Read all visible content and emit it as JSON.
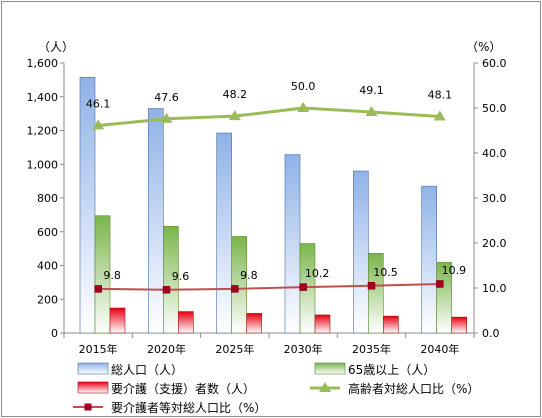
{
  "chart_data": {
    "type": "bar",
    "categories": [
      "2015年",
      "2020年",
      "2025年",
      "2030年",
      "2035年",
      "2040年"
    ],
    "y_left_unit": "（人）",
    "y_right_unit": "（%）",
    "ylim_left": [
      0,
      1600
    ],
    "ylim_right": [
      0,
      60
    ],
    "y_left_ticks": [
      "0",
      "200",
      "400",
      "600",
      "800",
      "1,000",
      "1,200",
      "1,400",
      "1,600"
    ],
    "y_right_ticks": [
      "0.0",
      "10.0",
      "20.0",
      "30.0",
      "40.0",
      "50.0",
      "60.0"
    ],
    "series": [
      {
        "name": "総人口（人）",
        "kind": "bar",
        "axis": "left",
        "values": [
          1515,
          1330,
          1185,
          1057,
          960,
          870
        ],
        "color": "#a6c4ec"
      },
      {
        "name": "65歳以上（人）",
        "kind": "bar",
        "axis": "left",
        "values": [
          695,
          632,
          572,
          530,
          472,
          418
        ],
        "color": "#8dc060"
      },
      {
        "name": "要介護（支援）者数（人）",
        "kind": "bar",
        "axis": "left",
        "values": [
          148,
          127,
          116,
          107,
          100,
          94
        ],
        "color": "#e8141b"
      },
      {
        "name": "高齢者対総人口比（%）",
        "kind": "line",
        "axis": "right",
        "values": [
          46.1,
          47.6,
          48.2,
          50.0,
          49.1,
          48.1
        ],
        "labels": [
          "46.1",
          "47.6",
          "48.2",
          "50.0",
          "49.1",
          "48.1"
        ],
        "color": "#9bbb59"
      },
      {
        "name": "要介護者等対総人口比（%）",
        "kind": "line",
        "axis": "right",
        "values": [
          9.8,
          9.6,
          9.8,
          10.2,
          10.5,
          10.9
        ],
        "labels": [
          "9.8",
          "9.6",
          "9.8",
          "10.2",
          "10.5",
          "10.9"
        ],
        "color": "#c0504d"
      }
    ],
    "legend": [
      "総人口（人）",
      "65歳以上（人）",
      "要介護（支援）者数（人）",
      "高齢者対総人口比（%）",
      "要介護者等対総人口比（%）"
    ],
    "legend_position": "bottom",
    "grid": false
  }
}
